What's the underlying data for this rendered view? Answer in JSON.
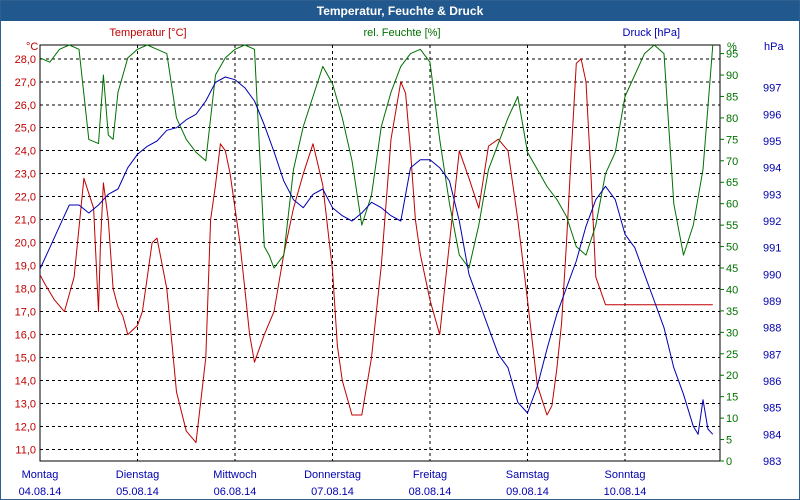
{
  "window": {
    "title": "Temperatur, Feuchte & Druck"
  },
  "chart_data": {
    "type": "line",
    "title": "Temperatur, Feuchte & Druck",
    "axes": {
      "temperature": {
        "label": "Temperatur [°C]",
        "unit": "°C",
        "min": 10.5,
        "max": 28.6,
        "ticks": [
          "11,0",
          "12,0",
          "13,0",
          "14,0",
          "15,0",
          "16,0",
          "17,0",
          "18,0",
          "19,0",
          "20,0",
          "21,0",
          "22,0",
          "23,0",
          "24,0",
          "25,0",
          "26,0",
          "27,0",
          "28,0"
        ]
      },
      "humidity": {
        "label": "rel. Feuchte [%]",
        "unit": "%",
        "min": 0,
        "max": 97,
        "ticks": [
          "0",
          "5",
          "10",
          "15",
          "20",
          "25",
          "30",
          "35",
          "40",
          "45",
          "50",
          "55",
          "60",
          "65",
          "70",
          "75",
          "80",
          "85",
          "90",
          "95"
        ]
      },
      "pressure": {
        "label": "Druck [hPa]",
        "unit": "hPa",
        "min": 983,
        "max": 998.6,
        "ticks": [
          "983",
          "984",
          "985",
          "986",
          "987",
          "988",
          "989",
          "990",
          "991",
          "992",
          "993",
          "994",
          "995",
          "996",
          "997"
        ]
      }
    },
    "days": [
      {
        "name": "Montag",
        "date": "04.08.14"
      },
      {
        "name": "Dienstag",
        "date": "05.08.14"
      },
      {
        "name": "Mittwoch",
        "date": "06.08.14"
      },
      {
        "name": "Donnerstag",
        "date": "07.08.14"
      },
      {
        "name": "Freitag",
        "date": "08.08.14"
      },
      {
        "name": "Samstag",
        "date": "09.08.14"
      },
      {
        "name": "Sonntag",
        "date": "10.08.14"
      }
    ],
    "x_unit": "days since 04.08.14 00:00",
    "series": [
      {
        "name": "Temperatur",
        "axis": "temperature",
        "color": "#c00000",
        "x": [
          0,
          0.05,
          0.15,
          0.25,
          0.35,
          0.45,
          0.55,
          0.6,
          0.62,
          0.65,
          0.7,
          0.75,
          0.8,
          0.85,
          0.9,
          0.95,
          1.0,
          1.05,
          1.1,
          1.15,
          1.2,
          1.3,
          1.4,
          1.5,
          1.6,
          1.7,
          1.75,
          1.8,
          1.85,
          1.9,
          1.95,
          2.0,
          2.05,
          2.1,
          2.15,
          2.2,
          2.3,
          2.4,
          2.5,
          2.6,
          2.7,
          2.8,
          2.9,
          3.0,
          3.05,
          3.1,
          3.2,
          3.3,
          3.4,
          3.5,
          3.6,
          3.7,
          3.75,
          3.8,
          3.85,
          3.9,
          4.0,
          4.1,
          4.2,
          4.3,
          4.4,
          4.5,
          4.6,
          4.7,
          4.8,
          4.9,
          5.0,
          5.1,
          5.2,
          5.25,
          5.3,
          5.35,
          5.4,
          5.45,
          5.5,
          5.55,
          5.6,
          5.65,
          5.7,
          5.8,
          5.9,
          6.0,
          6.1,
          6.2,
          6.3,
          6.4,
          6.5,
          6.6,
          6.7,
          6.75,
          6.8,
          6.9
        ],
        "values": [
          18.6,
          18.2,
          17.5,
          17.0,
          18.5,
          22.8,
          21.5,
          17.0,
          20.0,
          22.6,
          21.0,
          18.0,
          17.2,
          16.8,
          16.0,
          16.2,
          16.4,
          17.0,
          18.5,
          20.0,
          20.2,
          18.0,
          13.5,
          11.8,
          11.3,
          15.0,
          21.0,
          22.5,
          24.3,
          24.0,
          23.0,
          21.5,
          20.0,
          18.0,
          16.0,
          14.8,
          16.0,
          17.0,
          19.5,
          21.5,
          23.0,
          24.3,
          22.5,
          18.8,
          15.5,
          14.0,
          12.5,
          12.5,
          15.0,
          19.0,
          24.5,
          27.0,
          26.5,
          24.0,
          21.0,
          19.5,
          17.5,
          16.0,
          20.0,
          24.0,
          22.8,
          21.5,
          24.2,
          24.5,
          24.0,
          21.0,
          17.5,
          13.8,
          12.5,
          12.9,
          14.5,
          16.5,
          20.0,
          24.0,
          27.8,
          28.0,
          27.0,
          23.0,
          18.5,
          17.3,
          17.3,
          17.3,
          17.3,
          17.3,
          17.3,
          17.3,
          17.3,
          17.3,
          17.3,
          17.3,
          17.3,
          17.3
        ]
      },
      {
        "name": "rel. Feuchte",
        "axis": "humidity",
        "color": "#007000",
        "x": [
          0,
          0.1,
          0.2,
          0.3,
          0.4,
          0.5,
          0.6,
          0.65,
          0.7,
          0.75,
          0.8,
          0.9,
          1.0,
          1.1,
          1.2,
          1.3,
          1.4,
          1.5,
          1.6,
          1.7,
          1.8,
          1.9,
          2.0,
          2.1,
          2.2,
          2.3,
          2.35,
          2.4,
          2.5,
          2.6,
          2.7,
          2.8,
          2.9,
          3.0,
          3.1,
          3.2,
          3.3,
          3.4,
          3.5,
          3.6,
          3.7,
          3.8,
          3.9,
          4.0,
          4.1,
          4.2,
          4.3,
          4.4,
          4.5,
          4.6,
          4.7,
          4.8,
          4.9,
          5.0,
          5.1,
          5.2,
          5.3,
          5.4,
          5.5,
          5.6,
          5.7,
          5.8,
          5.9,
          6.0,
          6.1,
          6.2,
          6.3,
          6.4,
          6.5,
          6.6,
          6.7,
          6.8,
          6.9
        ],
        "values": [
          94,
          93,
          96,
          97,
          96,
          75,
          74,
          90,
          76,
          75,
          86,
          94,
          96,
          97,
          96,
          95,
          80,
          75,
          72,
          70,
          90,
          94,
          96,
          97,
          96,
          50,
          48,
          45,
          48,
          68,
          78,
          85,
          92,
          88,
          80,
          70,
          55,
          62,
          78,
          86,
          92,
          95,
          96,
          93,
          75,
          60,
          48,
          45,
          55,
          68,
          74,
          80,
          85,
          72,
          68,
          64,
          61,
          57,
          50,
          48,
          55,
          67,
          72,
          85,
          90,
          95,
          97,
          95,
          60,
          48,
          55,
          68,
          97
        ]
      },
      {
        "name": "Druck",
        "axis": "pressure",
        "color": "#0000b0",
        "x": [
          0,
          0.1,
          0.2,
          0.3,
          0.4,
          0.5,
          0.6,
          0.7,
          0.8,
          0.9,
          1.0,
          1.1,
          1.2,
          1.3,
          1.4,
          1.5,
          1.6,
          1.7,
          1.8,
          1.9,
          2.0,
          2.1,
          2.2,
          2.3,
          2.4,
          2.5,
          2.6,
          2.7,
          2.8,
          2.9,
          3.0,
          3.1,
          3.2,
          3.3,
          3.4,
          3.5,
          3.6,
          3.7,
          3.8,
          3.9,
          4.0,
          4.1,
          4.2,
          4.3,
          4.4,
          4.5,
          4.6,
          4.7,
          4.8,
          4.9,
          5.0,
          5.1,
          5.2,
          5.3,
          5.4,
          5.5,
          5.6,
          5.7,
          5.8,
          5.9,
          6.0,
          6.1,
          6.2,
          6.3,
          6.4,
          6.5,
          6.6,
          6.7,
          6.75,
          6.8,
          6.85,
          6.9
        ],
        "values": [
          990.2,
          991.0,
          991.8,
          992.6,
          992.6,
          992.3,
          992.6,
          993.0,
          993.2,
          994.0,
          994.5,
          994.8,
          995.0,
          995.4,
          995.5,
          995.8,
          996.0,
          996.5,
          997.2,
          997.4,
          997.3,
          997.0,
          996.5,
          995.6,
          994.6,
          993.5,
          992.8,
          992.5,
          993.0,
          993.2,
          992.5,
          992.2,
          992.0,
          992.3,
          992.7,
          992.5,
          992.2,
          992.0,
          994.0,
          994.3,
          994.3,
          994.0,
          993.5,
          992.0,
          990.0,
          989.0,
          988.0,
          987.0,
          986.5,
          985.2,
          984.8,
          985.8,
          987.2,
          988.5,
          989.5,
          990.5,
          991.8,
          992.8,
          993.3,
          992.8,
          991.5,
          991.0,
          990.0,
          989.0,
          988.0,
          986.5,
          985.5,
          984.3,
          984.0,
          985.3,
          984.2,
          984.0
        ]
      }
    ]
  }
}
